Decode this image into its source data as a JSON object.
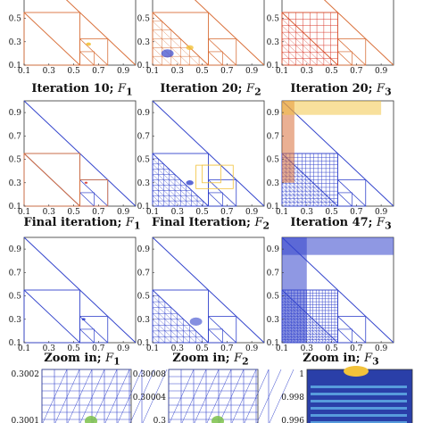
{
  "colors": {
    "orange": "#d9703a",
    "blue": "#3344cc",
    "yellow": "#f2c23a",
    "red": "#d8392b",
    "green": "#7cc24a",
    "navy": "#2a3fa8",
    "cyan": "#63b3e8"
  },
  "tick_labels": {
    "unit": [
      "0.1",
      "0.3",
      "0.5",
      "0.7",
      "0.9"
    ],
    "top_row_y": [
      "0.5",
      "0.3",
      "0.1"
    ],
    "zoom1": [
      "0.3002",
      "0.3001"
    ],
    "zoom2": [
      "0.30008",
      "0.30004",
      "0.3"
    ],
    "zoom3": [
      "1",
      "0.998",
      "0.996"
    ]
  },
  "captions": [
    {
      "main": "Iteration 10;",
      "fn": "F",
      "sub": "1"
    },
    {
      "main": "Iteration 20;",
      "fn": "F",
      "sub": "2"
    },
    {
      "main": "Iteration 20;",
      "fn": "F",
      "sub": "3"
    },
    {
      "main": "Final iteration;",
      "fn": "F",
      "sub": "1"
    },
    {
      "main": "Final Iteration;",
      "fn": "F",
      "sub": "2"
    },
    {
      "main": "Iteration 47;",
      "fn": "F",
      "sub": "3"
    },
    {
      "main": "Zoom in;",
      "fn": "F",
      "sub": "1"
    },
    {
      "main": "Zoom in;",
      "fn": "F",
      "sub": "2"
    },
    {
      "main": "Zoom in;",
      "fn": "F",
      "sub": "3"
    }
  ]
}
